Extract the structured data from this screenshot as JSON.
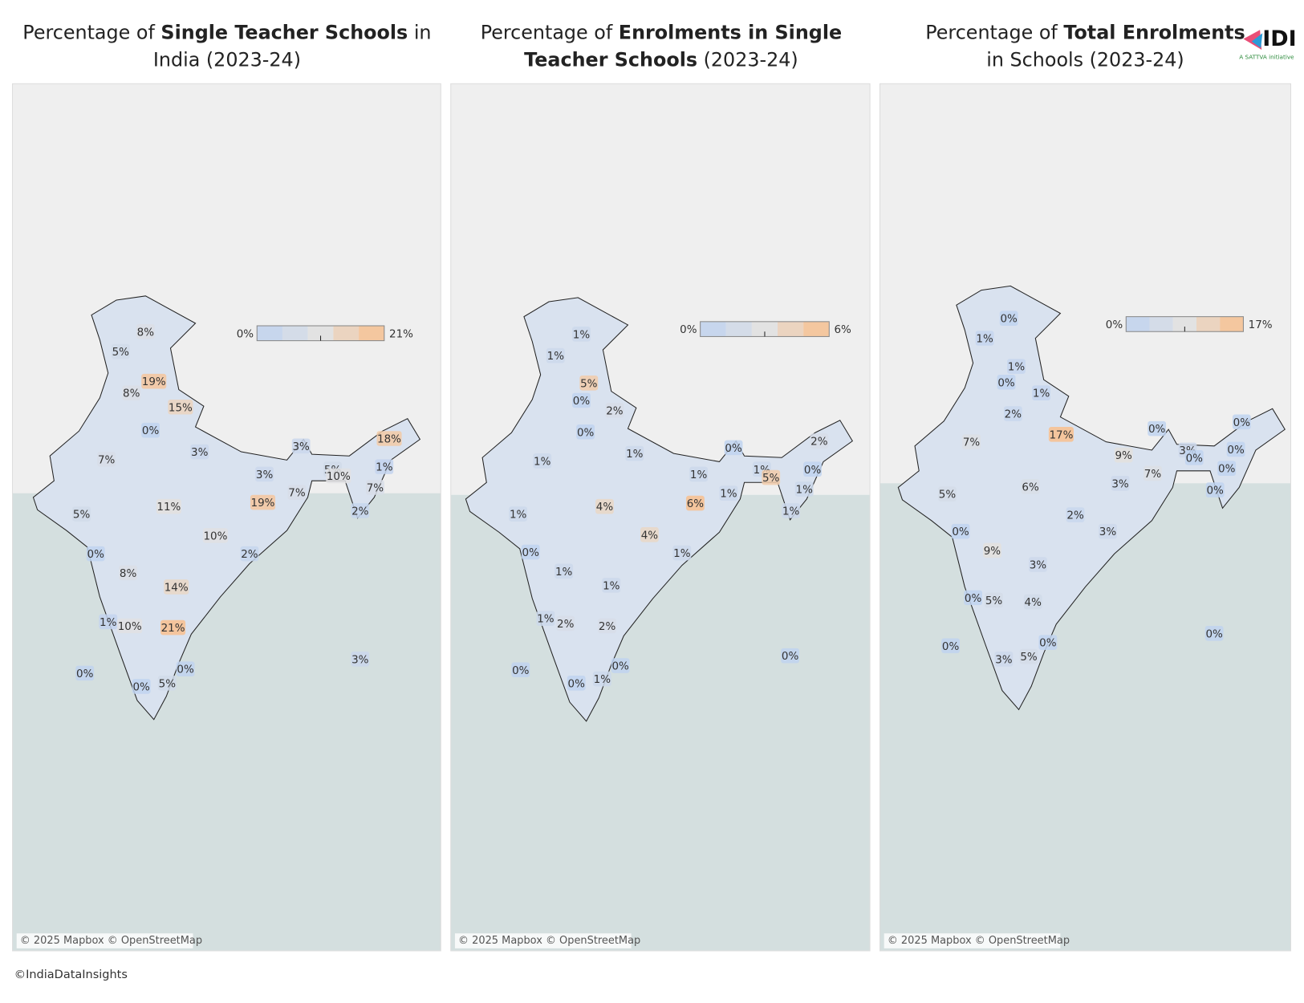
{
  "maps": [
    {
      "title_lines": [
        [
          {
            "text": "Percentage of ",
            "bold": false
          },
          {
            "text": "Single Teacher Schools",
            "bold": true
          },
          {
            "text": " in",
            "bold": false
          }
        ],
        [
          {
            "text": "India (2023-24)",
            "bold": false
          }
        ]
      ],
      "legend": {
        "range": [
          0,
          21
        ],
        "labels": [
          "0%",
          "21%"
        ]
      },
      "values": [
        8,
        5,
        19,
        8,
        15,
        0,
        3,
        7,
        3,
        5,
        10,
        1,
        18,
        3,
        19,
        7,
        7,
        11,
        5,
        2,
        10,
        0,
        2,
        8,
        14,
        1,
        10,
        21,
        0,
        0,
        3,
        0,
        5
      ],
      "value_labels": [
        "8%",
        "5%",
        "19%",
        "8%",
        "15%",
        "0%",
        "3%",
        "7%",
        "3%",
        "5%",
        "10%",
        "1%",
        "18%",
        "3%",
        "19%",
        "7%",
        "7%",
        "11%",
        "5%",
        "2%",
        "10%",
        "0%",
        "2%",
        "8%",
        "14%",
        "1%",
        "10%",
        "21%",
        "0%",
        "0%",
        "3%",
        "0%",
        "5%"
      ],
      "attribution": "© 2025 Mapbox © OpenStreetMap"
    },
    {
      "title_lines": [
        [
          {
            "text": "Percentage of ",
            "bold": false
          },
          {
            "text": "Enrolments in Single",
            "bold": true
          }
        ],
        [
          {
            "text": "Teacher Schools",
            "bold": true
          },
          {
            "text": " (2023-24)",
            "bold": false
          }
        ]
      ],
      "legend": {
        "range": [
          0,
          6
        ],
        "labels": [
          "0%",
          "6%"
        ]
      },
      "values": [
        1,
        1,
        5,
        0,
        2,
        0,
        1,
        0,
        2,
        1,
        1,
        1,
        5,
        0,
        1,
        6,
        1,
        4,
        1,
        1,
        4,
        0,
        1,
        1,
        1,
        1,
        2,
        2,
        0,
        0,
        0,
        0,
        1
      ],
      "value_labels": [
        "1%",
        "1%",
        "5%",
        "0%",
        "2%",
        "0%",
        "1%",
        "0%",
        "2%",
        "1%",
        "1%",
        "1%",
        "5%",
        "0%",
        "1%",
        "6%",
        "1%",
        "4%",
        "1%",
        "1%",
        "4%",
        "0%",
        "1%",
        "1%",
        "1%",
        "1%",
        "2%",
        "2%",
        "0%",
        "0%",
        "0%",
        "0%",
        "1%"
      ],
      "attribution": "© 2025 Mapbox © OpenStreetMap"
    },
    {
      "title_lines": [
        [
          {
            "text": "Percentage of ",
            "bold": false
          },
          {
            "text": "Total Enrolments",
            "bold": true
          }
        ],
        [
          {
            "text": "in Schools (2023-24)",
            "bold": false
          }
        ]
      ],
      "legend": {
        "range": [
          0,
          17
        ],
        "labels": [
          "0%",
          "17%"
        ]
      },
      "values": [
        0,
        1,
        1,
        0,
        1,
        2,
        0,
        0,
        17,
        7,
        9,
        3,
        0,
        0,
        0,
        7,
        3,
        0,
        5,
        6,
        2,
        3,
        0,
        9,
        3,
        0,
        5,
        4,
        0,
        0,
        0,
        3,
        5
      ],
      "value_labels": [
        "0%",
        "1%",
        "1%",
        "0%",
        "1%",
        "2%",
        "0%",
        "0%",
        "17%",
        "7%",
        "9%",
        "3%",
        "0%",
        "0%",
        "0%",
        "7%",
        "3%",
        "0%",
        "5%",
        "6%",
        "2%",
        "3%",
        "0%",
        "9%",
        "3%",
        "0%",
        "5%",
        "4%",
        "0%",
        "0%",
        "0%",
        "3%",
        "5%"
      ],
      "attribution": "© 2025 Mapbox © OpenStreetMap"
    }
  ],
  "logo": {
    "mark": "IDI",
    "tagline": "A SATTVA initiative"
  },
  "footer": "©IndiaDataInsights"
}
